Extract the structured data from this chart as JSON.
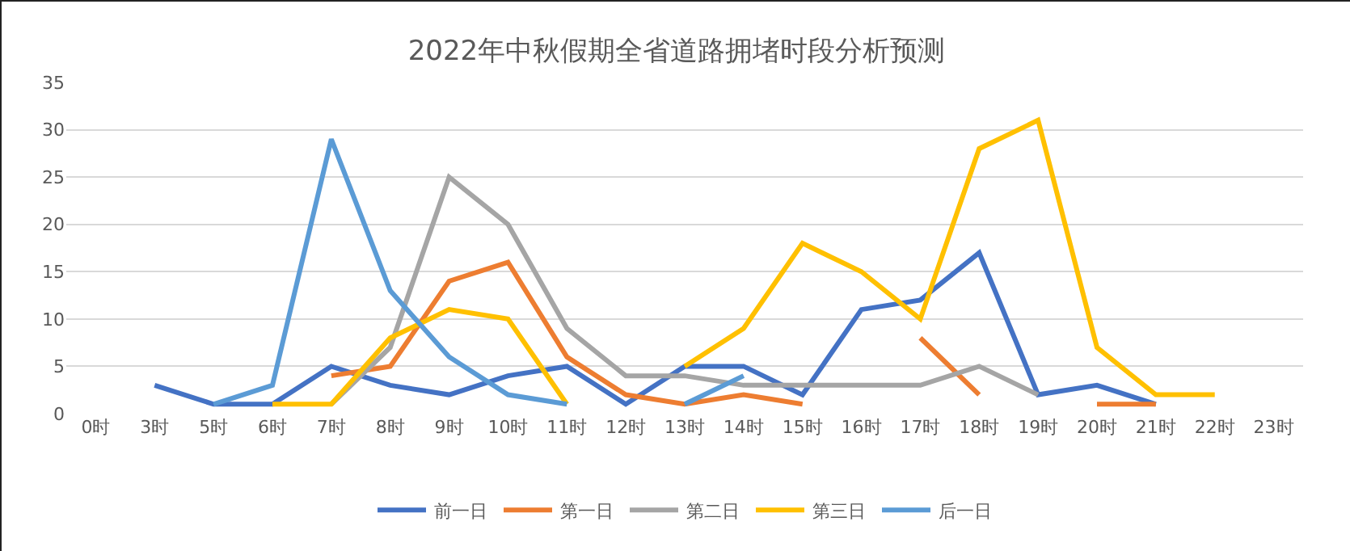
{
  "chart_data": {
    "type": "line",
    "title": "2022年中秋假期全省道路拥堵时段分析预测",
    "categories": [
      "0时",
      "3时",
      "5时",
      "6时",
      "7时",
      "8时",
      "9时",
      "10时",
      "11时",
      "12时",
      "13时",
      "14时",
      "15时",
      "16时",
      "17时",
      "18时",
      "19时",
      "20时",
      "21时",
      "22时",
      "23时"
    ],
    "series": [
      {
        "name": "前一日",
        "color": "#4472c4",
        "values": [
          null,
          3,
          1,
          1,
          5,
          3,
          2,
          4,
          5,
          1,
          5,
          5,
          2,
          11,
          12,
          17,
          2,
          3,
          1,
          null,
          null
        ]
      },
      {
        "name": "第一日",
        "color": "#ed7d31",
        "values": [
          null,
          null,
          null,
          null,
          4,
          5,
          14,
          16,
          6,
          2,
          1,
          2,
          1,
          null,
          8,
          2,
          null,
          1,
          1,
          null,
          null
        ]
      },
      {
        "name": "第二日",
        "color": "#a5a5a5",
        "values": [
          null,
          null,
          null,
          null,
          1,
          7,
          25,
          20,
          9,
          4,
          4,
          3,
          3,
          3,
          3,
          5,
          2,
          null,
          null,
          null,
          null
        ]
      },
      {
        "name": "第三日",
        "color": "#ffc000",
        "values": [
          null,
          null,
          null,
          1,
          1,
          8,
          11,
          10,
          1,
          null,
          5,
          9,
          18,
          15,
          10,
          28,
          31,
          7,
          2,
          2,
          null
        ]
      },
      {
        "name": "后一日",
        "color": "#5b9bd5",
        "values": [
          null,
          null,
          1,
          3,
          29,
          13,
          6,
          2,
          1,
          null,
          1,
          4,
          null,
          null,
          null,
          null,
          null,
          null,
          null,
          null,
          null
        ]
      }
    ],
    "ylim": [
      0,
      35
    ],
    "yticks": [
      0,
      5,
      10,
      15,
      20,
      25,
      30,
      35
    ],
    "grid": "y",
    "legend": "bottom",
    "marker": "none",
    "line_style": "solid"
  }
}
